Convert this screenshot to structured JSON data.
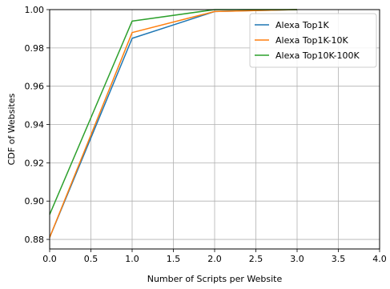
{
  "chart_data": {
    "type": "line",
    "title": "",
    "xlabel": "Number of Scripts per Website",
    "ylabel": "CDF of Websites",
    "xlim": [
      0.0,
      4.0
    ],
    "ylim": [
      0.875,
      1.0
    ],
    "xticks": [
      "0.0",
      "0.5",
      "1.0",
      "1.5",
      "2.0",
      "2.5",
      "3.0",
      "3.5",
      "4.0"
    ],
    "yticks": [
      "0.88",
      "0.90",
      "0.92",
      "0.94",
      "0.96",
      "0.98",
      "1.00"
    ],
    "grid": true,
    "legend_position": "top-right",
    "x": [
      0,
      1,
      2,
      3
    ],
    "series": [
      {
        "name": "Alexa Top1K",
        "color": "#1f77b4",
        "values": [
          0.881,
          0.985,
          0.999,
          1.0
        ]
      },
      {
        "name": "Alexa Top1K-10K",
        "color": "#ff7f0e",
        "values": [
          0.881,
          0.988,
          0.999,
          1.0
        ]
      },
      {
        "name": "Alexa Top10K-100K",
        "color": "#2ca02c",
        "values": [
          0.893,
          0.994,
          1.0,
          1.0
        ]
      }
    ]
  }
}
